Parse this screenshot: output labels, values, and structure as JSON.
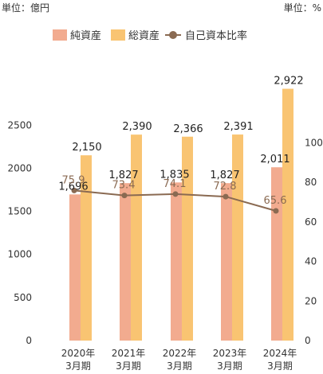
{
  "chart_data": {
    "type": "bar",
    "left_unit": "単位：億円",
    "right_unit": "単位：%",
    "categories": [
      [
        "2020年",
        "3月期"
      ],
      [
        "2021年",
        "3月期"
      ],
      [
        "2022年",
        "3月期"
      ],
      [
        "2023年",
        "3月期"
      ],
      [
        "2024年",
        "3月期"
      ]
    ],
    "series": [
      {
        "name": "純資産",
        "axis": "left",
        "type": "bar",
        "color": "#f2ab8f",
        "values": [
          1696,
          1827,
          1835,
          1827,
          2011
        ],
        "labels": [
          "1,696",
          "1,827",
          "1,835",
          "1,827",
          "2,011"
        ]
      },
      {
        "name": "総資産",
        "axis": "left",
        "type": "bar",
        "color": "#f9c472",
        "values": [
          2150,
          2390,
          2366,
          2391,
          2922
        ],
        "labels": [
          "2,150",
          "2,390",
          "2,366",
          "2,391",
          "2,922"
        ]
      },
      {
        "name": "自己資本比率",
        "axis": "right",
        "type": "line",
        "color": "#8a6a52",
        "values": [
          75.9,
          73.4,
          74.1,
          72.8,
          65.6
        ],
        "labels": [
          "75.9",
          "73.4",
          "74.1",
          "72.8",
          "65.6"
        ]
      }
    ],
    "left_axis": {
      "ticks": [
        "0",
        "500",
        "1000",
        "1500",
        "2000",
        "2500"
      ],
      "tick_values": [
        0,
        500,
        1000,
        1500,
        2000,
        2500
      ]
    },
    "right_axis": {
      "ticks": [
        "0",
        "20",
        "40",
        "60",
        "80",
        "100"
      ],
      "tick_values": [
        0,
        20,
        40,
        60,
        80,
        100
      ]
    },
    "legend": "top",
    "grid": false
  }
}
